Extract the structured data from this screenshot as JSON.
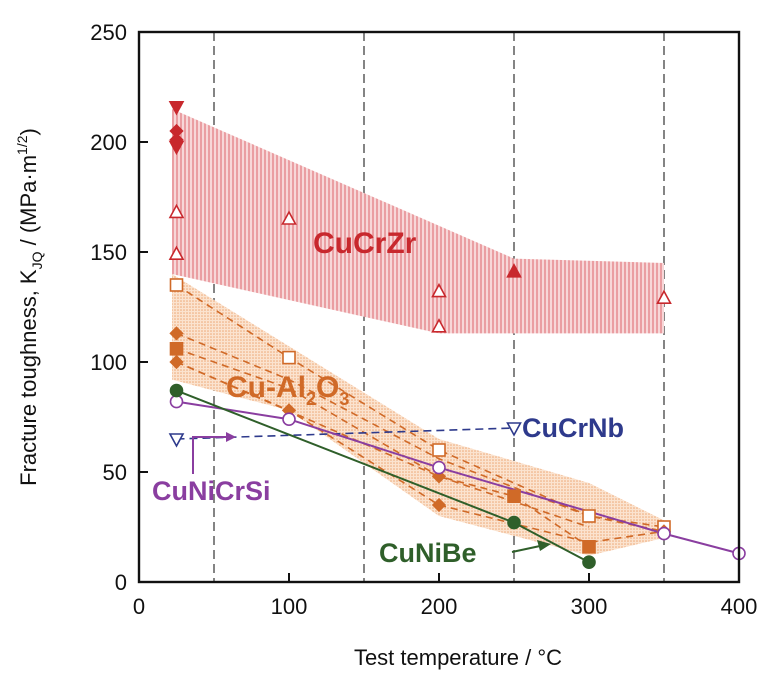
{
  "chart_data": {
    "type": "scatter",
    "xlabel": "Test temperature / °C",
    "ylabel": "Fracture toughness, K",
    "ylabel_sub": "JQ",
    "ylabel_units": " / (MPa·m",
    "ylabel_exp": "1/2",
    "ylabel_close": ")",
    "xlim": [
      0,
      400
    ],
    "ylim": [
      0,
      250
    ],
    "xticks": [
      0,
      100,
      200,
      300,
      400
    ],
    "yticks": [
      0,
      50,
      100,
      150,
      200,
      250
    ],
    "grid": "vertical dashed at x = 50, 150, 250, 350",
    "colors": {
      "cucrzr": "#c8282d",
      "cucrzr_band": "#eaa0a3",
      "cual2o3": "#d06a28",
      "cual2o3_band": "#f8cfae",
      "cucrnb": "#2e3a8c",
      "cunicrsi": "#8a3ea0",
      "cunibe": "#2f5f2a"
    },
    "bands": [
      {
        "name": "CuCrZr",
        "upper": [
          [
            22,
            215
          ],
          [
            250,
            147
          ],
          [
            350,
            145
          ]
        ],
        "lower": [
          [
            22,
            140
          ],
          [
            200,
            113
          ],
          [
            350,
            113
          ]
        ]
      },
      {
        "name": "Cu-Al2O3",
        "upper": [
          [
            22,
            140
          ],
          [
            200,
            65
          ],
          [
            300,
            45
          ],
          [
            350,
            28
          ]
        ],
        "lower": [
          [
            22,
            92
          ],
          [
            100,
            78
          ],
          [
            200,
            30
          ],
          [
            300,
            12
          ],
          [
            350,
            20
          ]
        ]
      }
    ],
    "series": [
      {
        "name": "CuCrZr",
        "points": [
          {
            "x": 25,
            "y": 216,
            "marker": "tri-down",
            "fill": "solid"
          },
          {
            "x": 25,
            "y": 205,
            "marker": "diamond",
            "fill": "solid"
          },
          {
            "x": 25,
            "y": 201,
            "marker": "diamond",
            "fill": "solid"
          },
          {
            "x": 25,
            "y": 198,
            "marker": "tri-down",
            "fill": "solid"
          },
          {
            "x": 25,
            "y": 168,
            "marker": "tri-up",
            "fill": "open"
          },
          {
            "x": 25,
            "y": 149,
            "marker": "tri-up",
            "fill": "open"
          },
          {
            "x": 100,
            "y": 165,
            "marker": "tri-up",
            "fill": "open"
          },
          {
            "x": 200,
            "y": 132,
            "marker": "tri-up",
            "fill": "open"
          },
          {
            "x": 200,
            "y": 116,
            "marker": "tri-up",
            "fill": "open"
          },
          {
            "x": 250,
            "y": 141,
            "marker": "tri-up",
            "fill": "solid"
          },
          {
            "x": 350,
            "y": 129,
            "marker": "tri-up",
            "fill": "open"
          }
        ]
      },
      {
        "name": "Cu-Al2O3",
        "points": [
          {
            "x": 25,
            "y": 135,
            "marker": "square",
            "fill": "open"
          },
          {
            "x": 25,
            "y": 113,
            "marker": "diamond",
            "fill": "solid"
          },
          {
            "x": 25,
            "y": 106,
            "marker": "square",
            "fill": "solid"
          },
          {
            "x": 25,
            "y": 100,
            "marker": "diamond",
            "fill": "solid"
          },
          {
            "x": 100,
            "y": 102,
            "marker": "square",
            "fill": "open"
          },
          {
            "x": 100,
            "y": 78,
            "marker": "diamond",
            "fill": "solid"
          },
          {
            "x": 200,
            "y": 60,
            "marker": "square",
            "fill": "open"
          },
          {
            "x": 200,
            "y": 48,
            "marker": "diamond",
            "fill": "solid"
          },
          {
            "x": 200,
            "y": 35,
            "marker": "diamond",
            "fill": "solid"
          },
          {
            "x": 250,
            "y": 39,
            "marker": "square",
            "fill": "solid"
          },
          {
            "x": 300,
            "y": 30,
            "marker": "square",
            "fill": "open"
          },
          {
            "x": 300,
            "y": 16,
            "marker": "square",
            "fill": "solid"
          },
          {
            "x": 350,
            "y": 25,
            "marker": "square",
            "fill": "open"
          },
          {
            "x": 350,
            "y": 23,
            "marker": "diamond",
            "fill": "solid"
          }
        ],
        "dashed_lines": [
          [
            [
              25,
              135
            ],
            [
              100,
              102
            ],
            [
              200,
              60
            ],
            [
              300,
              30
            ],
            [
              350,
              25
            ]
          ],
          [
            [
              25,
              113
            ],
            [
              100,
              92
            ],
            [
              200,
              56
            ],
            [
              300,
              30
            ],
            [
              350,
              23
            ]
          ],
          [
            [
              25,
              106
            ],
            [
              100,
              88
            ],
            [
              200,
              48
            ],
            [
              250,
              39
            ],
            [
              300,
              16
            ]
          ],
          [
            [
              25,
              100
            ],
            [
              100,
              78
            ],
            [
              200,
              35
            ],
            [
              300,
              18
            ],
            [
              350,
              23
            ]
          ],
          [
            [
              25,
              100
            ],
            [
              200,
              48
            ],
            [
              300,
              25
            ]
          ]
        ]
      },
      {
        "name": "CuCrNb",
        "points": [
          {
            "x": 25,
            "y": 65,
            "marker": "tri-down",
            "fill": "open"
          },
          {
            "x": 250,
            "y": 70,
            "marker": "tri-down",
            "fill": "open"
          }
        ],
        "line": "dashed"
      },
      {
        "name": "CuNiCrSi",
        "points": [
          {
            "x": 25,
            "y": 82,
            "marker": "circle",
            "fill": "open"
          },
          {
            "x": 100,
            "y": 74,
            "marker": "circle",
            "fill": "open"
          },
          {
            "x": 200,
            "y": 52,
            "marker": "circle",
            "fill": "open"
          },
          {
            "x": 350,
            "y": 22,
            "marker": "circle",
            "fill": "open"
          },
          {
            "x": 400,
            "y": 13,
            "marker": "circle",
            "fill": "open"
          }
        ],
        "line": "solid"
      },
      {
        "name": "CuNiBe",
        "points": [
          {
            "x": 25,
            "y": 87,
            "marker": "circle",
            "fill": "solid"
          },
          {
            "x": 250,
            "y": 27,
            "marker": "circle",
            "fill": "solid"
          },
          {
            "x": 300,
            "y": 9,
            "marker": "circle",
            "fill": "solid"
          }
        ],
        "line": "solid"
      }
    ],
    "labels": {
      "cucrzr": "CuCrZr",
      "cual2o3_main": "Cu-Al",
      "cual2o3_sub2": "2",
      "cual2o3_O": "O",
      "cual2o3_sub3": "3",
      "cucrnb": "CuCrNb",
      "cunicrsi": "CuNiCrSi",
      "cunibe": "CuNiBe"
    }
  }
}
